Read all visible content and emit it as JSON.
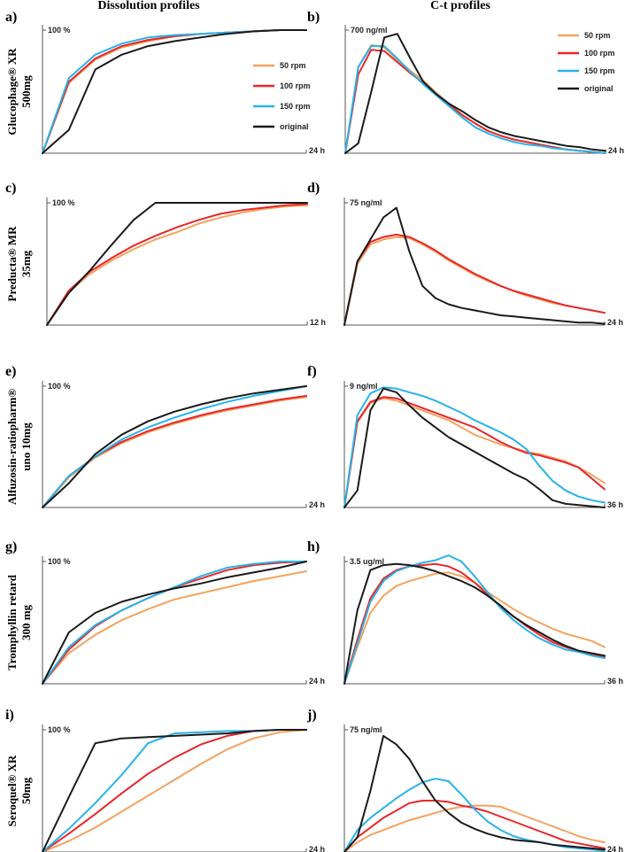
{
  "headers": {
    "left": "Dissolution profiles",
    "right": "C-t profiles"
  },
  "colors": {
    "rpm50": "#f4a25e",
    "rpm100": "#e8262a",
    "rpm150": "#27b3ea",
    "original": "#1a1a1a",
    "axis": "#555555"
  },
  "legend": [
    {
      "label": "50 rpm",
      "color": "#f4a25e"
    },
    {
      "label": "100 rpm",
      "color": "#e8262a"
    },
    {
      "label": "150 rpm",
      "color": "#27b3ea"
    },
    {
      "label": "original",
      "color": "#1a1a1a"
    }
  ],
  "chart_data": [
    {
      "id": "a",
      "panel": "a)",
      "type": "line",
      "row_label": [
        "Glucophage® XR",
        "500mg"
      ],
      "ymax_label": "100 %",
      "xmax_label": "24 h",
      "x": [
        0,
        1,
        2,
        3,
        4,
        5,
        6,
        7,
        8,
        9,
        10
      ],
      "series": [
        {
          "name": "50 rpm",
          "color": "#f4a25e",
          "values": [
            0,
            57,
            76,
            86,
            91,
            95,
            97,
            98,
            99,
            100,
            100
          ]
        },
        {
          "name": "100 rpm",
          "color": "#e8262a",
          "values": [
            0,
            58,
            77,
            87,
            92,
            95,
            97,
            98,
            99,
            100,
            100
          ]
        },
        {
          "name": "150 rpm",
          "color": "#27b3ea",
          "values": [
            0,
            61,
            80,
            89,
            94,
            96,
            97,
            98,
            99,
            100,
            100
          ]
        },
        {
          "name": "original",
          "color": "#1a1a1a",
          "values": [
            0,
            19,
            68,
            80,
            87,
            91,
            94,
            97,
            99,
            100,
            100
          ]
        }
      ]
    },
    {
      "id": "b",
      "panel": "b)",
      "type": "line",
      "ymax_label": "700 ng/ml",
      "xmax_label": "24 h",
      "x": [
        0,
        1,
        2,
        3,
        4,
        5,
        6,
        7,
        8,
        9,
        10,
        11,
        12,
        13,
        14,
        15,
        16,
        17,
        18,
        19,
        20
      ],
      "series": [
        {
          "name": "50 rpm",
          "color": "#f4a25e",
          "values": [
            0,
            70,
            88,
            86,
            76,
            67,
            59,
            49,
            40,
            31,
            24,
            18,
            14,
            11,
            9,
            7,
            5,
            3,
            2,
            1,
            0
          ]
        },
        {
          "name": "100 rpm",
          "color": "#e8262a",
          "values": [
            0,
            64,
            84,
            83,
            74,
            65,
            57,
            48,
            39,
            31,
            24,
            18,
            14,
            11,
            9,
            7,
            5,
            3,
            2,
            1,
            0
          ]
        },
        {
          "name": "150 rpm",
          "color": "#27b3ea",
          "values": [
            0,
            70,
            87,
            87,
            77,
            66,
            56,
            47,
            38,
            29,
            21,
            16,
            12,
            9,
            7,
            6,
            4,
            3,
            2,
            1,
            0
          ]
        },
        {
          "name": "original",
          "color": "#1a1a1a",
          "values": [
            0,
            8,
            50,
            94,
            97,
            77,
            58,
            48,
            40,
            34,
            27,
            21,
            17,
            14,
            12,
            10,
            8,
            6,
            5,
            3,
            2
          ]
        }
      ]
    },
    {
      "id": "c",
      "panel": "c)",
      "type": "line",
      "row_label": [
        "Preducta® MR",
        "35mg"
      ],
      "ymax_label": "100 %",
      "xmax_label": "12 h",
      "x": [
        0,
        1,
        2,
        3,
        4,
        5,
        6,
        7,
        8,
        9,
        10,
        11,
        12
      ],
      "series": [
        {
          "name": "50 rpm",
          "color": "#f4a25e",
          "values": [
            0,
            27,
            42,
            53,
            62,
            70,
            76,
            83,
            88,
            92,
            95,
            97,
            98
          ]
        },
        {
          "name": "100 rpm",
          "color": "#e8262a",
          "values": [
            0,
            28,
            44,
            55,
            65,
            73,
            80,
            86,
            91,
            94,
            96,
            98,
            99
          ]
        },
        {
          "name": "original",
          "color": "#1a1a1a",
          "values": [
            0,
            26,
            45,
            66,
            86,
            100,
            100,
            100,
            100,
            100,
            100,
            100,
            100
          ]
        }
      ]
    },
    {
      "id": "d",
      "panel": "d)",
      "type": "line",
      "ymax_label": "75 ng/ml",
      "xmax_label": "24 h",
      "x": [
        0,
        1,
        2,
        3,
        4,
        5,
        6,
        7,
        8,
        9,
        10,
        11,
        12,
        13,
        14,
        15,
        16,
        17,
        18,
        19,
        20
      ],
      "series": [
        {
          "name": "50 rpm",
          "color": "#f4a25e",
          "values": [
            0,
            50,
            66,
            70,
            72,
            71,
            66,
            60,
            53,
            47,
            41,
            36,
            32,
            28,
            24,
            21,
            18,
            16,
            14,
            12,
            10
          ]
        },
        {
          "name": "100 rpm",
          "color": "#e8262a",
          "values": [
            0,
            52,
            68,
            72,
            74,
            72,
            67,
            61,
            54,
            48,
            42,
            37,
            32,
            28,
            25,
            22,
            19,
            16,
            14,
            12,
            10
          ]
        },
        {
          "name": "original",
          "color": "#1a1a1a",
          "values": [
            0,
            52,
            70,
            88,
            96,
            60,
            32,
            22,
            17,
            14,
            12,
            10,
            8,
            7,
            6,
            5,
            4,
            3,
            2,
            2,
            1
          ]
        }
      ]
    },
    {
      "id": "e",
      "panel": "e)",
      "type": "line",
      "row_label": [
        "Alfuzosin-ratiopharm®",
        "uno 10mg"
      ],
      "ymax_label": "100 %",
      "xmax_label": "24 h",
      "x": [
        0,
        1,
        2,
        3,
        4,
        5,
        6,
        7,
        8,
        9,
        10
      ],
      "series": [
        {
          "name": "50 rpm",
          "color": "#f4a25e",
          "values": [
            0,
            25,
            41,
            53,
            62,
            69,
            75,
            80,
            84,
            88,
            91
          ]
        },
        {
          "name": "100 rpm",
          "color": "#e8262a",
          "values": [
            0,
            26,
            42,
            54,
            63,
            70,
            76,
            81,
            85,
            89,
            92
          ]
        },
        {
          "name": "150 rpm",
          "color": "#27b3ea",
          "values": [
            0,
            26,
            42,
            56,
            66,
            74,
            81,
            87,
            92,
            96,
            100
          ]
        },
        {
          "name": "original",
          "color": "#1a1a1a",
          "values": [
            0,
            20,
            44,
            60,
            71,
            79,
            85,
            90,
            94,
            97,
            100
          ]
        }
      ]
    },
    {
      "id": "f",
      "panel": "f)",
      "type": "line",
      "ymax_label": "9 ng/ml",
      "xmax_label": "36 h",
      "x": [
        0,
        1,
        2,
        3,
        4,
        5,
        6,
        7,
        8,
        9,
        10,
        11,
        12,
        13,
        14,
        15,
        16,
        17,
        18,
        19,
        20
      ],
      "series": [
        {
          "name": "50 rpm",
          "color": "#f4a25e",
          "values": [
            0,
            70,
            86,
            90,
            88,
            84,
            80,
            76,
            72,
            66,
            60,
            56,
            52,
            49,
            46,
            44,
            41,
            38,
            33,
            27,
            20
          ]
        },
        {
          "name": "100 rpm",
          "color": "#e8262a",
          "values": [
            0,
            71,
            87,
            91,
            90,
            86,
            82,
            78,
            74,
            70,
            66,
            60,
            54,
            49,
            45,
            43,
            40,
            37,
            33,
            24,
            15
          ]
        },
        {
          "name": "150 rpm",
          "color": "#27b3ea",
          "values": [
            0,
            76,
            94,
            99,
            98,
            95,
            92,
            88,
            83,
            78,
            72,
            67,
            62,
            56,
            48,
            34,
            22,
            14,
            9,
            6,
            4
          ]
        },
        {
          "name": "original",
          "color": "#1a1a1a",
          "values": [
            0,
            14,
            80,
            98,
            95,
            84,
            74,
            66,
            58,
            52,
            46,
            40,
            34,
            28,
            23,
            15,
            6,
            3,
            2,
            1,
            0
          ]
        }
      ]
    },
    {
      "id": "g",
      "panel": "g)",
      "type": "line",
      "row_label": [
        "Tromphyllin retard",
        "300 mg"
      ],
      "ymax_label": "100 %",
      "xmax_label": "24 h",
      "x": [
        0,
        1,
        2,
        3,
        4,
        5,
        6,
        7,
        8,
        9,
        10
      ],
      "series": [
        {
          "name": "50 rpm",
          "color": "#f4a25e",
          "values": [
            0,
            25,
            40,
            52,
            61,
            69,
            74,
            79,
            84,
            88,
            92
          ]
        },
        {
          "name": "100 rpm",
          "color": "#e8262a",
          "values": [
            0,
            28,
            47,
            60,
            70,
            79,
            86,
            93,
            97,
            99,
            100
          ]
        },
        {
          "name": "150 rpm",
          "color": "#27b3ea",
          "values": [
            0,
            30,
            48,
            60,
            70,
            79,
            88,
            95,
            98,
            100,
            100
          ]
        },
        {
          "name": "original",
          "color": "#1a1a1a",
          "values": [
            0,
            42,
            58,
            67,
            73,
            78,
            82,
            87,
            91,
            95,
            100
          ]
        }
      ]
    },
    {
      "id": "h",
      "panel": "h)",
      "type": "line",
      "ymax_label": "3.5 ug/ml",
      "xmax_label": "36 h",
      "x": [
        0,
        1,
        2,
        3,
        4,
        5,
        6,
        7,
        8,
        9,
        10,
        11,
        12,
        13,
        14,
        15,
        16,
        17,
        18,
        19,
        20
      ],
      "series": [
        {
          "name": "50 rpm",
          "color": "#f4a25e",
          "values": [
            0,
            30,
            58,
            72,
            80,
            84,
            87,
            90,
            91,
            88,
            83,
            75,
            68,
            61,
            55,
            50,
            45,
            41,
            38,
            35,
            30
          ]
        },
        {
          "name": "100 rpm",
          "color": "#e8262a",
          "values": [
            0,
            36,
            70,
            86,
            93,
            96,
            97,
            98,
            96,
            91,
            83,
            73,
            63,
            55,
            47,
            40,
            34,
            30,
            27,
            24,
            22
          ]
        },
        {
          "name": "150 rpm",
          "color": "#27b3ea",
          "values": [
            0,
            33,
            67,
            84,
            92,
            96,
            99,
            101,
            105,
            100,
            88,
            75,
            62,
            52,
            44,
            37,
            32,
            28,
            26,
            23,
            21
          ]
        },
        {
          "name": "original",
          "color": "#1a1a1a",
          "values": [
            0,
            60,
            93,
            97,
            98,
            97,
            95,
            92,
            88,
            84,
            79,
            72,
            64,
            55,
            48,
            42,
            36,
            31,
            27,
            25,
            23
          ]
        }
      ]
    },
    {
      "id": "i",
      "panel": "i)",
      "type": "line",
      "row_label": [
        "Seroquel® XR",
        "50mg"
      ],
      "ymax_label": "100 %",
      "xmax_label": "24 h",
      "x": [
        0,
        1,
        2,
        3,
        4,
        5,
        6,
        7,
        8,
        9,
        10
      ],
      "series": [
        {
          "name": "50 rpm",
          "color": "#f4a25e",
          "values": [
            0,
            9,
            20,
            33,
            46,
            59,
            72,
            84,
            93,
            98,
            100
          ]
        },
        {
          "name": "100 rpm",
          "color": "#e8262a",
          "values": [
            0,
            15,
            31,
            48,
            64,
            77,
            88,
            95,
            99,
            100,
            100
          ]
        },
        {
          "name": "150 rpm",
          "color": "#27b3ea",
          "values": [
            0,
            19,
            40,
            63,
            89,
            97,
            98,
            99,
            99,
            100,
            100
          ]
        },
        {
          "name": "original",
          "color": "#1a1a1a",
          "values": [
            0,
            45,
            89,
            93,
            94,
            95,
            96,
            97,
            99,
            100,
            100
          ]
        }
      ]
    },
    {
      "id": "j",
      "panel": "j)",
      "type": "line",
      "ymax_label": "75 ng/ml",
      "xmax_label": "24 h",
      "x": [
        0,
        1,
        2,
        3,
        4,
        5,
        6,
        7,
        8,
        9,
        10,
        11,
        12,
        13,
        14,
        15,
        16,
        17,
        18,
        19,
        20
      ],
      "series": [
        {
          "name": "50 rpm",
          "color": "#f4a25e",
          "values": [
            0,
            8,
            14,
            18,
            22,
            26,
            29,
            32,
            35,
            37,
            38,
            38,
            37,
            33,
            29,
            25,
            21,
            17,
            13,
            10,
            8
          ]
        },
        {
          "name": "100 rpm",
          "color": "#e8262a",
          "values": [
            0,
            12,
            20,
            28,
            34,
            40,
            42,
            42,
            41,
            38,
            36,
            33,
            29,
            25,
            21,
            17,
            13,
            9,
            7,
            5,
            3
          ]
        },
        {
          "name": "150 rpm",
          "color": "#27b3ea",
          "values": [
            0,
            18,
            28,
            36,
            44,
            51,
            57,
            60,
            58,
            47,
            35,
            25,
            18,
            13,
            10,
            8,
            6,
            4,
            3,
            2,
            1
          ]
        },
        {
          "name": "original",
          "color": "#1a1a1a",
          "values": [
            0,
            12,
            50,
            95,
            88,
            76,
            58,
            42,
            32,
            24,
            19,
            15,
            12,
            10,
            9,
            8,
            6,
            5,
            4,
            3,
            2
          ]
        }
      ]
    }
  ]
}
